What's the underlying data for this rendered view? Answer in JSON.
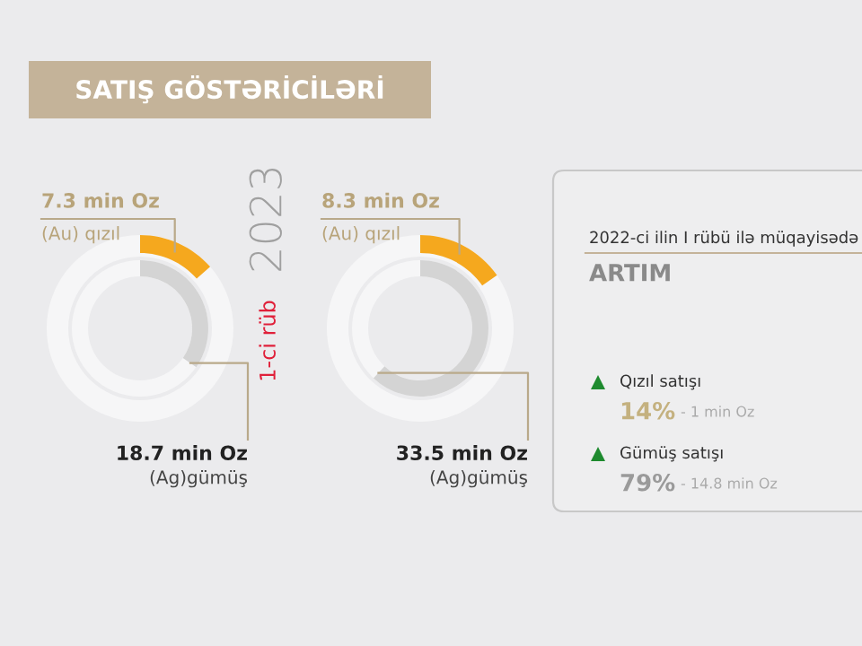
{
  "chart_data": [
    {
      "type": "other",
      "title": "SATIŞ GÖSTƏRİCİLƏRİ",
      "categories": [
        "(Au) qızıl",
        "(Ag)gümüş"
      ],
      "values": [
        7.3,
        18.7
      ],
      "value_labels": [
        "7.3 min Oz",
        "18.7 min Oz"
      ],
      "colors": [
        "#f5a81e",
        "#d4d4d4"
      ]
    },
    {
      "type": "other",
      "categories": [
        "(Au) qızıl",
        "(Ag)gümüş"
      ],
      "values": [
        8.3,
        33.5
      ],
      "value_labels": [
        "8.3 min Oz",
        "33.5 min Oz"
      ],
      "colors": [
        "#f5a81e",
        "#d4d4d4"
      ],
      "annotations": [
        "1-ci rüb",
        "2023"
      ]
    },
    {
      "type": "other",
      "annotations": [
        "2022-ci ilin I rübü ilə müqayisədə",
        "ARTIM",
        "Qızıl satışı",
        "14%",
        "- 1 min Oz",
        "Gümüş satışı",
        "79%",
        "- 14.8 min Oz"
      ]
    }
  ]
}
